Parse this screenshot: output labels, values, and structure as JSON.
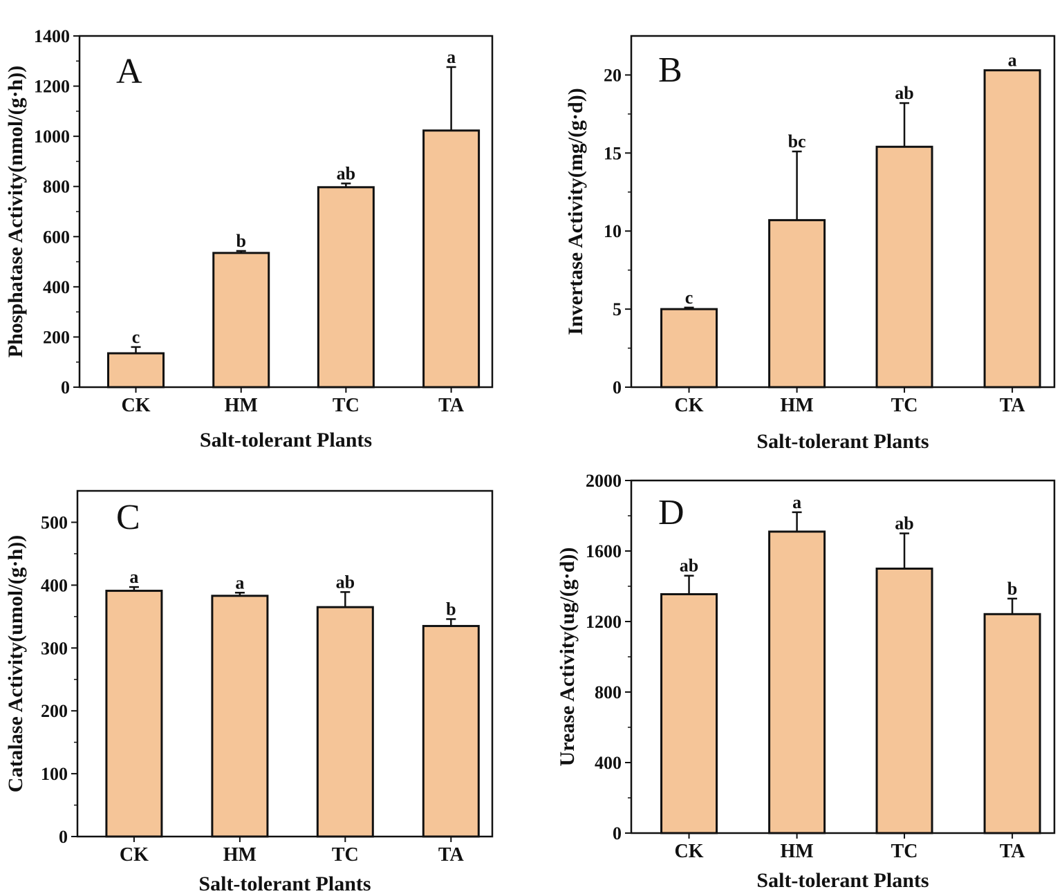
{
  "chart_data": [
    {
      "panel": "A",
      "type": "bar",
      "categories": [
        "CK",
        "HM",
        "TC",
        "TA"
      ],
      "values": [
        135,
        535,
        797,
        1023
      ],
      "errors": [
        25,
        8,
        15,
        253
      ],
      "significance": [
        "c",
        "b",
        "ab",
        "a"
      ],
      "ylabel": "Phosphatase Activity(nmol/(g·h))",
      "xlabel": "Salt-tolerant Plants",
      "ylim": [
        0,
        1400
      ],
      "yticks": [
        0,
        200,
        400,
        600,
        800,
        1000,
        1200,
        1400
      ],
      "grid": false
    },
    {
      "panel": "B",
      "type": "bar",
      "categories": [
        "CK",
        "HM",
        "TC",
        "TA"
      ],
      "values": [
        5.0,
        10.7,
        15.4,
        20.3
      ],
      "errors": [
        0.1,
        4.4,
        2.8,
        0.0
      ],
      "significance": [
        "c",
        "bc",
        "ab",
        "a"
      ],
      "ylabel": "Invertase Activity(mg/(g·d))",
      "xlabel": "Salt-tolerant Plants",
      "ylim": [
        0,
        22.5
      ],
      "yticks": [
        0,
        5,
        10,
        15,
        20
      ],
      "grid": false
    },
    {
      "panel": "C",
      "type": "bar",
      "categories": [
        "CK",
        "HM",
        "TC",
        "TA"
      ],
      "values": [
        391,
        383,
        365,
        335
      ],
      "errors": [
        6,
        5,
        24,
        11
      ],
      "significance": [
        "a",
        "a",
        "ab",
        "b"
      ],
      "ylabel": "Catalase Activity(umol/(g·h))",
      "xlabel": "Salt-tolerant Plants",
      "ylim": [
        0,
        550
      ],
      "yticks": [
        0,
        100,
        200,
        300,
        400,
        500
      ],
      "grid": false
    },
    {
      "panel": "D",
      "type": "bar",
      "categories": [
        "CK",
        "HM",
        "TC",
        "TA"
      ],
      "values": [
        1355,
        1710,
        1500,
        1242
      ],
      "errors": [
        105,
        110,
        200,
        88
      ],
      "significance": [
        "ab",
        "a",
        "ab",
        "b"
      ],
      "ylabel": "Urease Activity(ug/(g·d))",
      "xlabel": "Salt-tolerant Plants",
      "ylim": [
        0,
        2000
      ],
      "yticks": [
        0,
        400,
        800,
        1200,
        1600,
        2000
      ],
      "grid": false
    }
  ],
  "colors": {
    "bar_fill": "#f5c598",
    "stroke": "#111111"
  }
}
